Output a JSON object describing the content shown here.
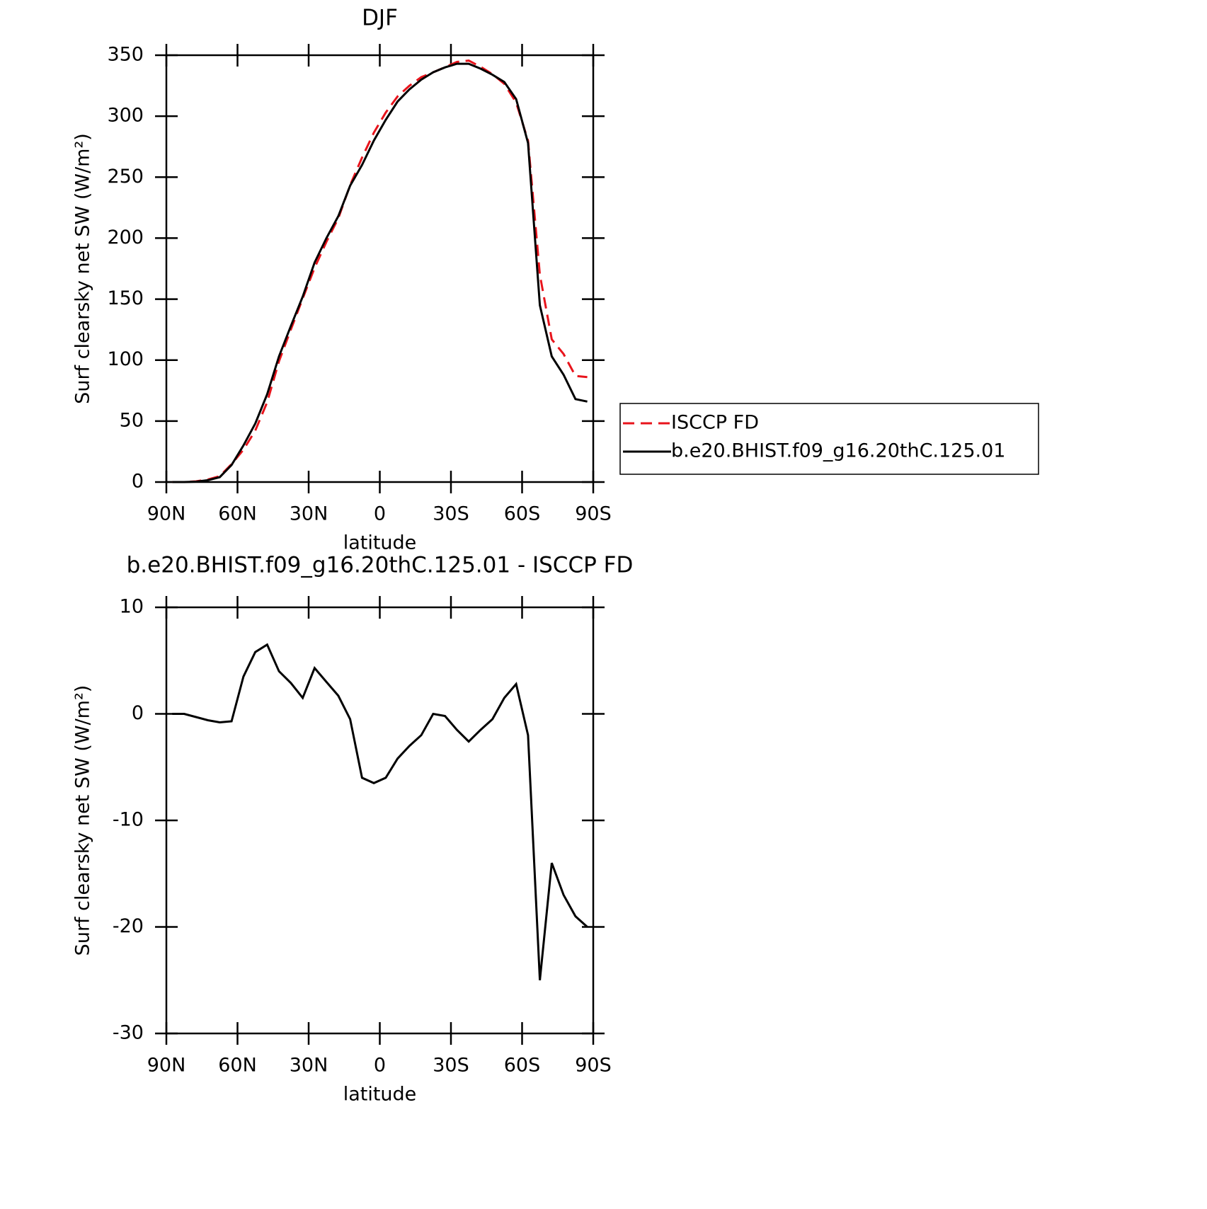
{
  "chart_data": [
    {
      "type": "line",
      "title": "DJF",
      "xlabel": "latitude",
      "ylabel": "Surf clearsky net SW (W/m²)",
      "x": [
        87.5,
        82.5,
        77.5,
        72.5,
        67.5,
        62.5,
        57.5,
        52.5,
        47.5,
        42.5,
        37.5,
        32.5,
        27.5,
        22.5,
        17.5,
        12.5,
        7.5,
        2.5,
        -2.5,
        -7.5,
        -12.5,
        -17.5,
        -22.5,
        -27.5,
        -32.5,
        -37.5,
        -42.5,
        -47.5,
        -52.5,
        -57.5,
        -62.5,
        -67.5,
        -72.5,
        -77.5,
        -82.5,
        -87.5
      ],
      "series": [
        {
          "name": "ISCCP FD",
          "color": "#e8141c",
          "dashed": true,
          "values": [
            0,
            0,
            0.6,
            2.1,
            4.8,
            14.7,
            26.5,
            42.2,
            65.5,
            99,
            125.1,
            150.5,
            175.7,
            197,
            216.3,
            243.5,
            266,
            286.5,
            303,
            316.2,
            325,
            332,
            336,
            340.2,
            344.5,
            345.6,
            340.5,
            334.5,
            326.5,
            311.2,
            280,
            170,
            117,
            105,
            87,
            86
          ]
        },
        {
          "name": "b.e20.BHIST.f09_g16.20thC.125.01",
          "color": "#000000",
          "dashed": false,
          "values": [
            0,
            0,
            0.3,
            1.5,
            4,
            14,
            30,
            48,
            72,
            103,
            128,
            152,
            180,
            200,
            218,
            243,
            260,
            280,
            297,
            312,
            322,
            330,
            336,
            340,
            343,
            343,
            339,
            334,
            328,
            314,
            278,
            145,
            103,
            88,
            68,
            66
          ]
        }
      ],
      "xlim": [
        90,
        -90
      ],
      "xticks": [
        {
          "value": 90,
          "label": "90N"
        },
        {
          "value": 60,
          "label": "60N"
        },
        {
          "value": 30,
          "label": "30N"
        },
        0,
        {
          "value": -30,
          "label": "30S"
        },
        {
          "value": -60,
          "label": "60S"
        },
        {
          "value": -90,
          "label": "90S"
        }
      ],
      "ylim": [
        0,
        350
      ],
      "yticks": [
        0,
        50,
        100,
        150,
        200,
        250,
        300,
        350
      ],
      "legend": "right"
    },
    {
      "type": "line",
      "title": "b.e20.BHIST.f09_g16.20thC.125.01 - ISCCP FD",
      "xlabel": "latitude",
      "ylabel": "Surf clearsky net SW (W/m²)",
      "x": [
        87.5,
        82.5,
        77.5,
        72.5,
        67.5,
        62.5,
        57.5,
        52.5,
        47.5,
        42.5,
        37.5,
        32.5,
        27.5,
        22.5,
        17.5,
        12.5,
        7.5,
        2.5,
        -2.5,
        -7.5,
        -12.5,
        -17.5,
        -22.5,
        -27.5,
        -32.5,
        -37.5,
        -42.5,
        -47.5,
        -52.5,
        -57.5,
        -62.5,
        -67.5,
        -72.5,
        -77.5,
        -82.5,
        -87.5
      ],
      "series": [
        {
          "name": "b.e20.BHIST.f09_g16.20thC.125.01 - ISCCP FD",
          "color": "#000000",
          "dashed": false,
          "values": [
            0,
            0,
            -0.3,
            -0.6,
            -0.8,
            -0.7,
            3.5,
            5.8,
            6.5,
            4,
            2.9,
            1.5,
            4.3,
            3,
            1.7,
            -0.5,
            -6,
            -6.5,
            -6,
            -4.2,
            -3,
            -2,
            0,
            -0.2,
            -1.5,
            -2.6,
            -1.5,
            -0.5,
            1.5,
            2.8,
            -2,
            -25,
            -14,
            -17,
            -19,
            -20
          ]
        }
      ],
      "xlim": [
        90,
        -90
      ],
      "xticks": [
        {
          "value": 90,
          "label": "90N"
        },
        {
          "value": 60,
          "label": "60N"
        },
        {
          "value": 30,
          "label": "30N"
        },
        0,
        {
          "value": -30,
          "label": "30S"
        },
        {
          "value": -60,
          "label": "60S"
        },
        {
          "value": -90,
          "label": "90S"
        }
      ],
      "ylim": [
        -30,
        10
      ],
      "yticks": [
        -30,
        -20,
        -10,
        0,
        10
      ]
    }
  ]
}
